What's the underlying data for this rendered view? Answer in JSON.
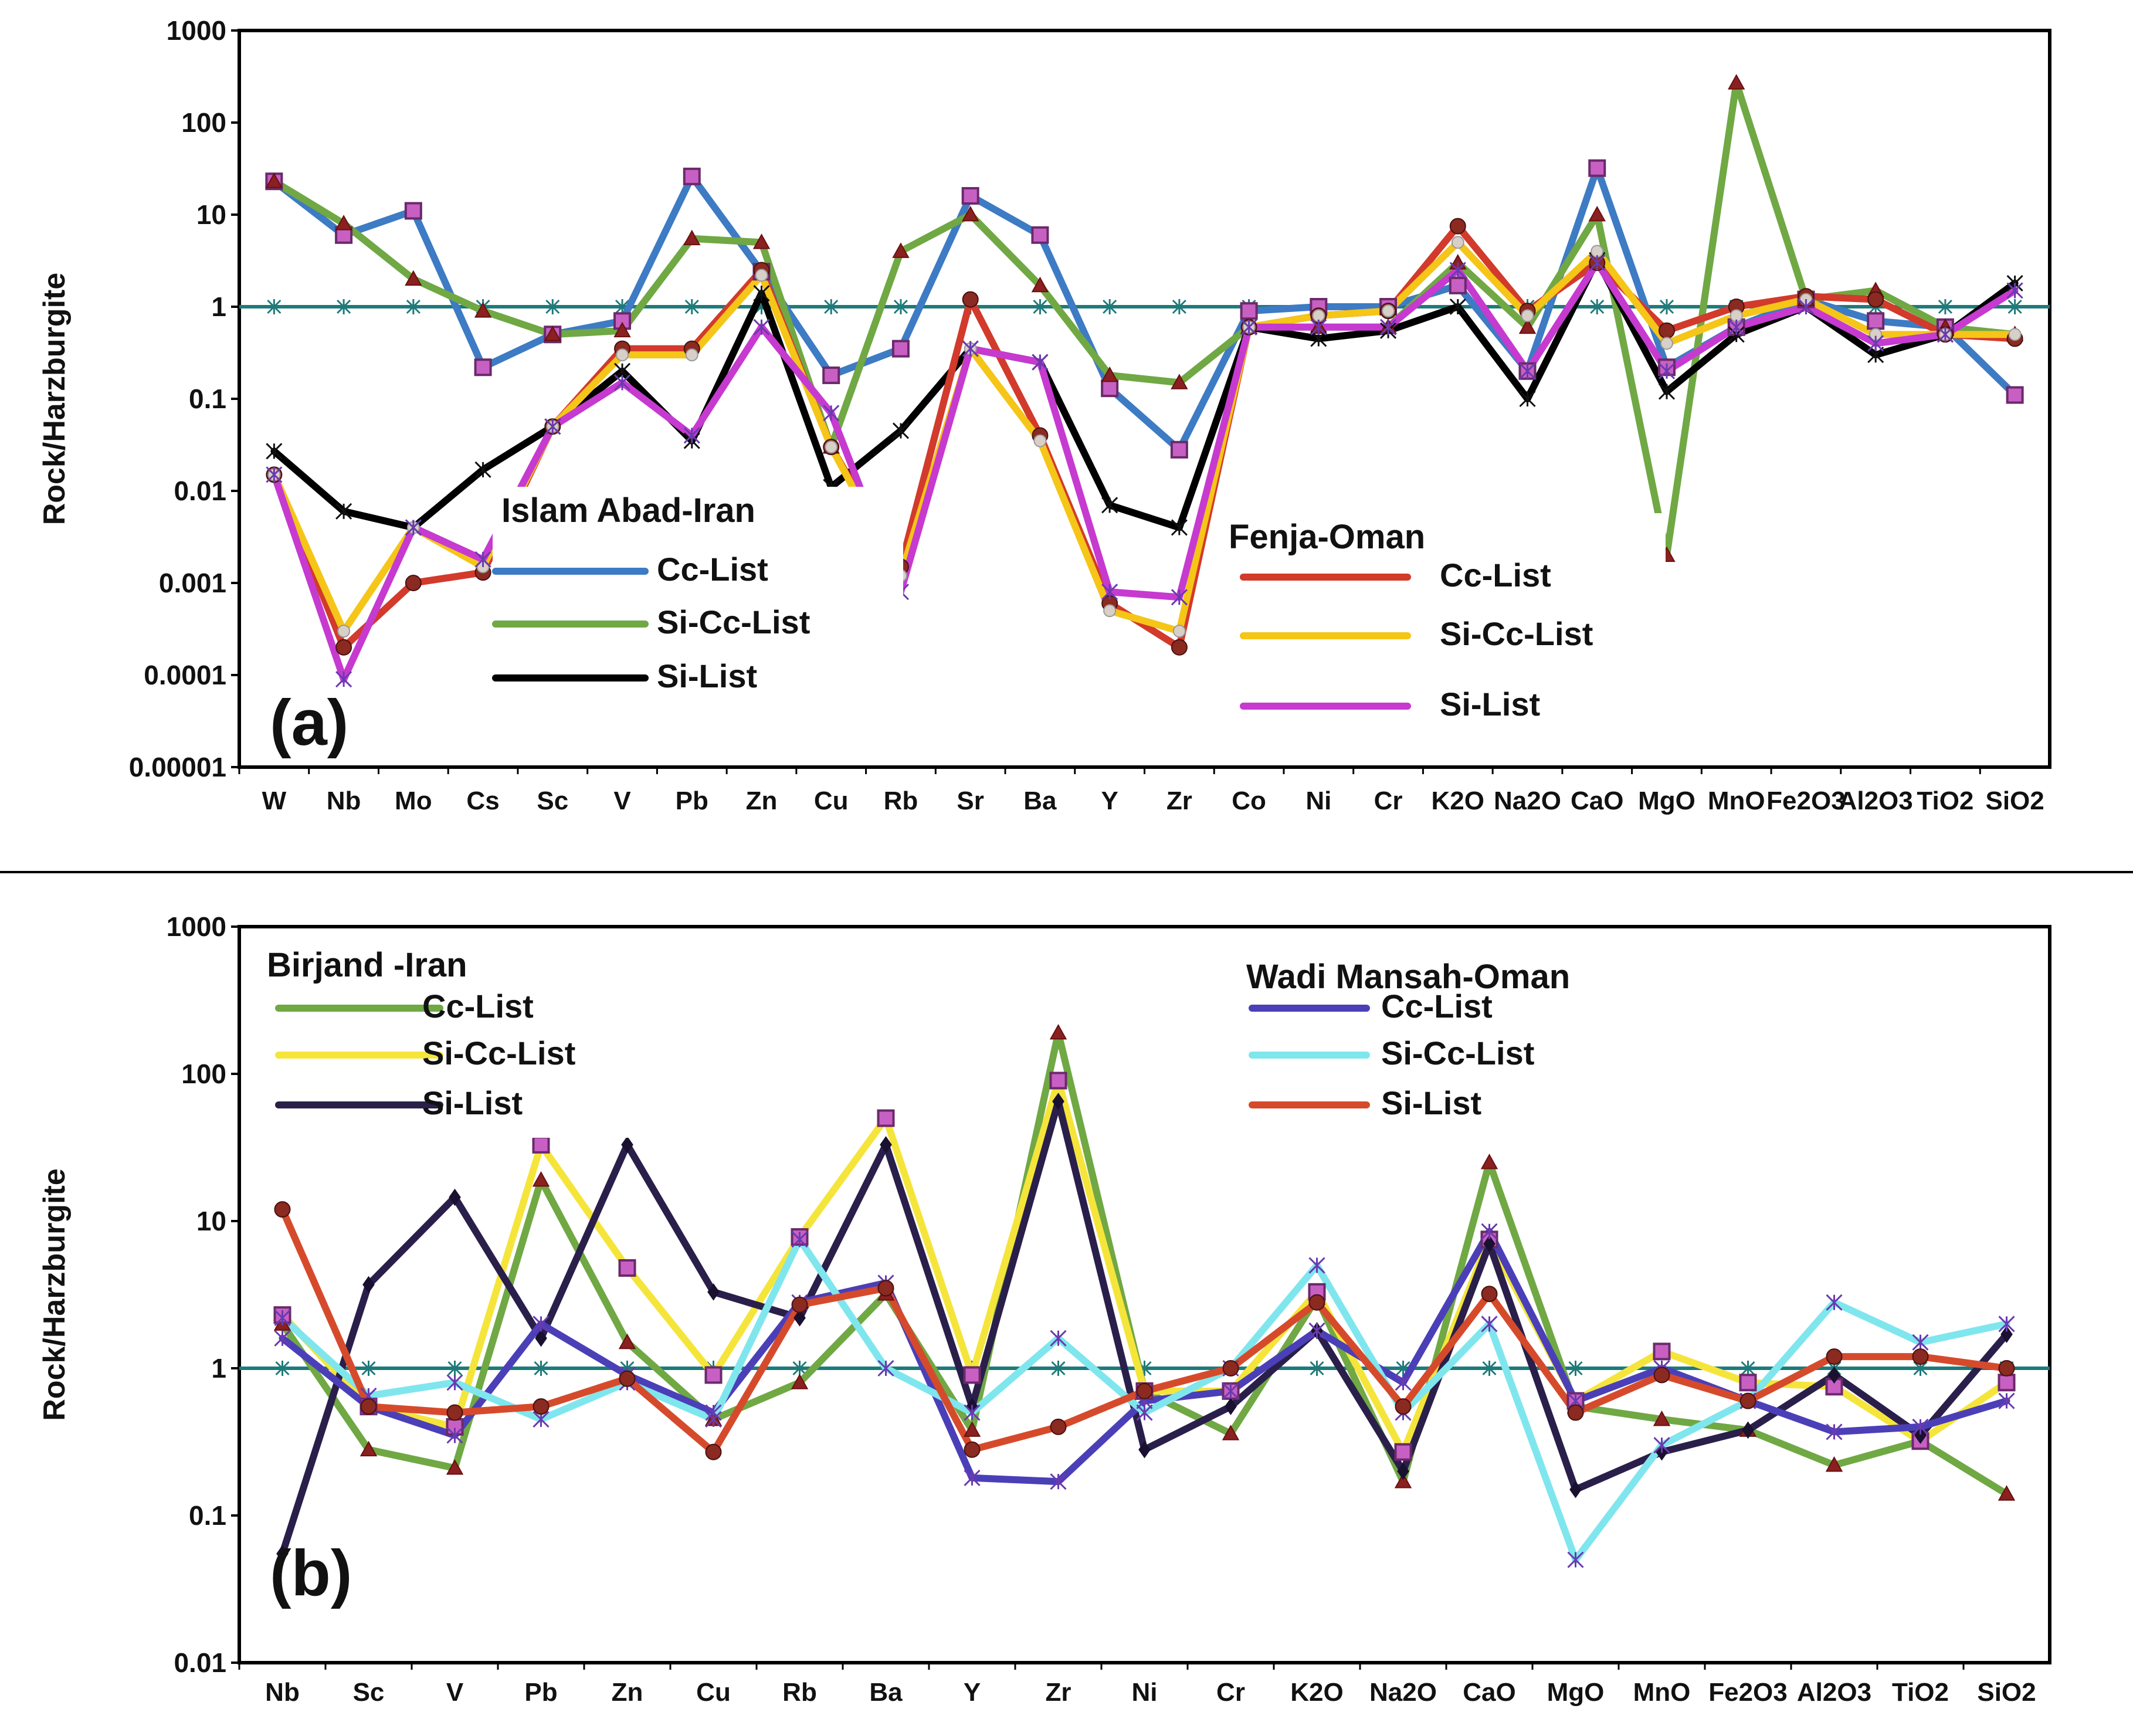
{
  "chart_data": [
    {
      "type": "line",
      "panel_label": "(a)",
      "ylabel": "Rock/Harzburgite",
      "yscale": "log",
      "ylim": [
        1e-05,
        1000
      ],
      "y_ticks": [
        "1000",
        "100",
        "10",
        "1",
        "0.1",
        "0.01",
        "0.001",
        "0.0001",
        "0.00001"
      ],
      "y_tick_values": [
        1000,
        100,
        10,
        1,
        0.1,
        0.01,
        0.001,
        0.0001,
        1e-05
      ],
      "categories": [
        "W",
        "Nb",
        "Mo",
        "Cs",
        "Sc",
        "V",
        "Pb",
        "Zn",
        "Cu",
        "Rb",
        "Sr",
        "Ba",
        "Y",
        "Zr",
        "Co",
        "Ni",
        "Cr",
        "K2O",
        "Na2O",
        "CaO",
        "MgO",
        "MnO",
        "Fe2O3",
        "Al2O3",
        "TiO2",
        "SiO2"
      ],
      "reference_line": 1,
      "legend_groups": [
        {
          "title": "Islam Abad-Iran",
          "items": [
            {
              "label": "Cc-List",
              "color": "#3d7bc4"
            },
            {
              "label": "Si-Cc-List",
              "color": "#70a844"
            },
            {
              "label": "Si-List",
              "color": "#000000"
            }
          ]
        },
        {
          "title": "Fenja-Oman",
          "items": [
            {
              "label": "Cc-List",
              "color": "#d23a2c"
            },
            {
              "label": "Si-Cc-List",
              "color": "#f5c518"
            },
            {
              "label": "Si-List",
              "color": "#c63ad0"
            }
          ]
        }
      ],
      "series": [
        {
          "name": "Islam Abad-Iran Cc-List",
          "color": "#3d7bc4",
          "marker": "square",
          "values": [
            23,
            6,
            11,
            0.22,
            0.5,
            0.7,
            26,
            2.4,
            0.18,
            0.35,
            16,
            6,
            0.13,
            0.028,
            0.9,
            1.0,
            1.0,
            1.7,
            0.2,
            32,
            0.22,
            0.6,
            1.2,
            0.7,
            0.6,
            0.11
          ]
        },
        {
          "name": "Islam Abad-Iran Si-Cc-List",
          "color": "#70a844",
          "marker": "triangle",
          "values": [
            23,
            8,
            2,
            0.9,
            0.5,
            0.55,
            5.5,
            5.0,
            0.03,
            4,
            10,
            1.7,
            0.18,
            0.15,
            0.6,
            0.6,
            0.6,
            3,
            0.6,
            10,
            0.002,
            270,
            1.2,
            1.5,
            0.6,
            0.5
          ]
        },
        {
          "name": "Islam Abad-Iran Si-List",
          "color": "#000000",
          "marker": "x",
          "values": [
            0.027,
            0.006,
            0.004,
            0.017,
            0.05,
            0.2,
            0.035,
            1.4,
            0.011,
            0.045,
            0.35,
            0.25,
            0.007,
            0.004,
            0.6,
            0.45,
            0.55,
            1.0,
            0.1,
            3.2,
            0.12,
            0.5,
            1.0,
            0.3,
            0.5,
            1.8
          ]
        },
        {
          "name": "Fenja-Oman Cc-List",
          "color": "#d23a2c",
          "marker": "circle",
          "values": [
            0.015,
            0.0002,
            0.001,
            0.0013,
            0.05,
            0.35,
            0.35,
            2.5,
            0.03,
            0.0015,
            1.2,
            0.04,
            0.0006,
            0.0002,
            0.6,
            0.8,
            0.9,
            7.5,
            0.9,
            3.0,
            0.55,
            1.0,
            1.3,
            1.2,
            0.5,
            0.45
          ]
        },
        {
          "name": "Fenja-Oman Si-Cc-List",
          "color": "#f5c518",
          "marker": "circle-light",
          "values": [
            0.015,
            0.0003,
            0.004,
            0.0015,
            0.05,
            0.3,
            0.3,
            2.2,
            0.03,
            0.0012,
            0.35,
            0.035,
            0.0005,
            0.0003,
            0.6,
            0.8,
            0.9,
            5,
            0.8,
            4,
            0.4,
            0.8,
            1.2,
            0.5,
            0.5,
            0.5
          ]
        },
        {
          "name": "Fenja-Oman Si-List",
          "color": "#c63ad0",
          "marker": "star",
          "values": [
            0.015,
            9e-05,
            0.004,
            0.0018,
            0.05,
            0.15,
            0.04,
            0.6,
            0.07,
            0.0008,
            0.35,
            0.25,
            0.0008,
            0.0007,
            0.6,
            0.6,
            0.6,
            2.5,
            0.2,
            3.0,
            0.2,
            0.6,
            1.0,
            0.4,
            0.5,
            1.5
          ]
        }
      ]
    },
    {
      "type": "line",
      "panel_label": "(b)",
      "ylabel": "Rock/Harzburgite",
      "yscale": "log",
      "ylim": [
        0.01,
        1000
      ],
      "y_ticks": [
        "1000",
        "100",
        "10",
        "1",
        "0.1",
        "0.01"
      ],
      "y_tick_values": [
        1000,
        100,
        10,
        1,
        0.1,
        0.01
      ],
      "categories": [
        "Nb",
        "Sc",
        "V",
        "Pb",
        "Zn",
        "Cu",
        "Rb",
        "Ba",
        "Y",
        "Zr",
        "Ni",
        "Cr",
        "K2O",
        "Na2O",
        "CaO",
        "MgO",
        "MnO",
        "Fe2O3",
        "Al2O3",
        "TiO2",
        "SiO2"
      ],
      "reference_line": 1,
      "legend_groups": [
        {
          "title": "Birjand -Iran",
          "items": [
            {
              "label": "Cc-List",
              "color": "#70a844"
            },
            {
              "label": "Si-Cc-List",
              "color": "#f5e53b"
            },
            {
              "label": "Si-List",
              "color": "#2a1f4a"
            }
          ]
        },
        {
          "title": "Wadi Mansah-Oman",
          "items": [
            {
              "label": "Cc-List",
              "color": "#4b3fb8"
            },
            {
              "label": "Si-Cc-List",
              "color": "#7fe6ee"
            },
            {
              "label": "Si-List",
              "color": "#d64a2c"
            }
          ]
        }
      ],
      "series": [
        {
          "name": "Birjand-Iran Cc-List",
          "color": "#70a844",
          "marker": "triangle",
          "values": [
            2.0,
            0.28,
            0.21,
            19,
            1.5,
            0.45,
            0.8,
            3.2,
            0.38,
            190,
            0.7,
            0.36,
            3.0,
            0.17,
            25,
            0.55,
            0.45,
            0.38,
            0.22,
            0.32,
            0.14
          ]
        },
        {
          "name": "Birjand-Iran Si-Cc-List",
          "color": "#f5e53b",
          "marker": "square",
          "values": [
            2.3,
            0.55,
            0.4,
            33,
            4.8,
            0.9,
            7.8,
            50,
            0.9,
            90,
            0.7,
            0.7,
            3.3,
            0.27,
            7.5,
            0.6,
            1.3,
            0.8,
            0.75,
            0.32,
            0.8
          ]
        },
        {
          "name": "Birjand-Iran Si-List",
          "color": "#2a1f4a",
          "marker": "diamond",
          "values": [
            0.055,
            3.7,
            14.5,
            1.6,
            33,
            3.3,
            2.2,
            33,
            0.55,
            65,
            0.28,
            0.55,
            1.8,
            0.2,
            7.0,
            0.15,
            0.27,
            0.38,
            0.9,
            0.35,
            1.7
          ]
        },
        {
          "name": "Wadi Mansah-Oman Cc-List",
          "color": "#4b3fb8",
          "marker": "star",
          "values": [
            1.6,
            0.55,
            0.35,
            2.0,
            0.9,
            0.5,
            2.8,
            3.8,
            0.18,
            0.17,
            0.6,
            0.7,
            1.8,
            0.8,
            8.5,
            0.6,
            1.0,
            0.6,
            0.37,
            0.4,
            0.6
          ]
        },
        {
          "name": "Wadi Mansah-Oman Si-Cc-List",
          "color": "#7fe6ee",
          "marker": "star",
          "values": [
            2.2,
            0.65,
            0.8,
            0.45,
            0.8,
            0.45,
            7.5,
            1.0,
            0.5,
            1.6,
            0.5,
            1.0,
            5.0,
            0.5,
            2.0,
            0.05,
            0.3,
            0.6,
            2.8,
            1.5,
            2.0
          ]
        },
        {
          "name": "Wadi Mansah-Oman Si-List",
          "color": "#d64a2c",
          "marker": "circle",
          "values": [
            12,
            0.55,
            0.5,
            0.55,
            0.85,
            0.27,
            2.7,
            3.5,
            0.28,
            0.4,
            0.7,
            1.0,
            2.8,
            0.55,
            3.2,
            0.5,
            0.9,
            0.6,
            1.2,
            1.2,
            1.0
          ]
        }
      ]
    }
  ]
}
